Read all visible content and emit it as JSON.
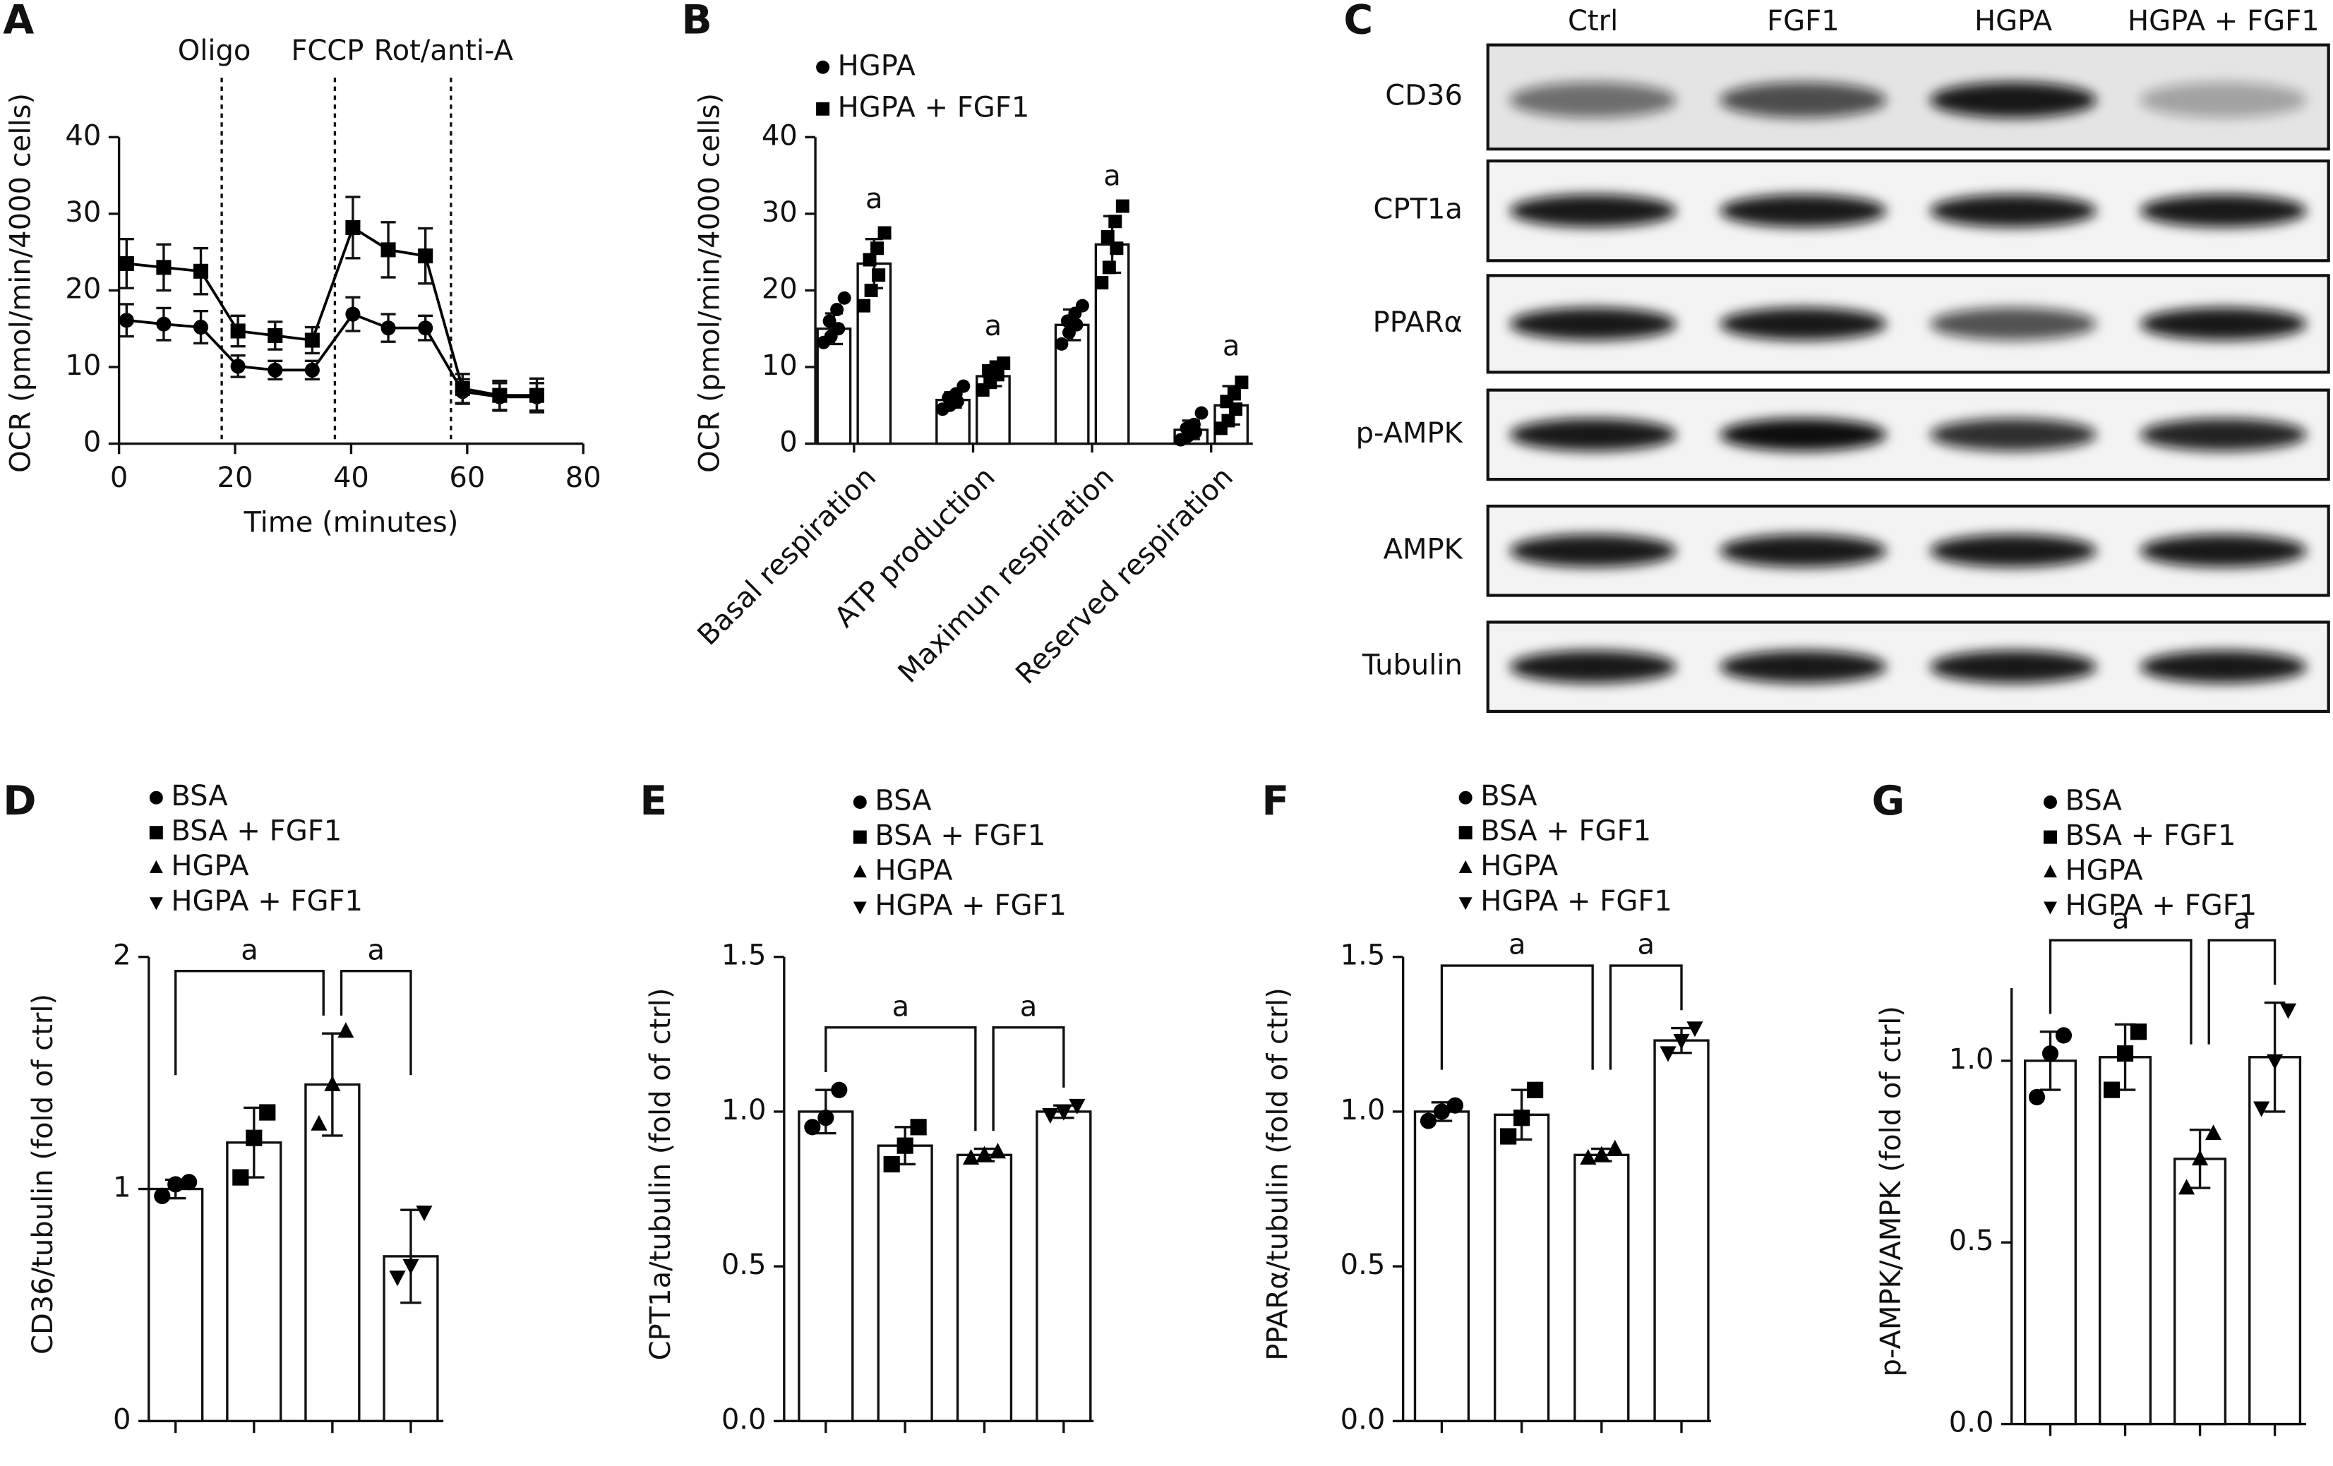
{
  "chart_data": [
    {
      "panel": "A",
      "type": "line",
      "ylabel": "OCR (pmol/min/4000 cells)",
      "xlabel": "Time (minutes)",
      "x": [
        1.3,
        7.7,
        14.1,
        20.5,
        26.9,
        33.3,
        40.3,
        46.4,
        52.8,
        59.2,
        65.6,
        72.0
      ],
      "xlim": [
        0,
        80
      ],
      "xticks": [
        0,
        20,
        40,
        60,
        80
      ],
      "ylim": [
        0,
        40
      ],
      "yticks": [
        0,
        10,
        20,
        30,
        40
      ],
      "series": [
        {
          "marker": "circle",
          "color": "#000000",
          "values": [
            16.1,
            15.6,
            15.2,
            10.1,
            9.6,
            9.6,
            16.9,
            15.1,
            15.1,
            6.8,
            6.1,
            6.1
          ],
          "errors": [
            2.1,
            2.1,
            2.1,
            1.4,
            1.2,
            1.2,
            2.2,
            1.8,
            1.6,
            1.6,
            1.8,
            1.8
          ]
        },
        {
          "marker": "square",
          "color": "#000000",
          "values": [
            23.5,
            23.0,
            22.5,
            14.7,
            14.1,
            13.5,
            28.2,
            25.3,
            24.5,
            7.2,
            6.3,
            6.3
          ],
          "errors": [
            3.2,
            3.0,
            3.0,
            2.0,
            1.8,
            1.7,
            4.0,
            3.6,
            3.6,
            1.9,
            1.9,
            2.2
          ]
        }
      ],
      "annotations": [
        {
          "x": 17.7,
          "label": "Oligo"
        },
        {
          "x": 37.2,
          "label": "FCCP"
        },
        {
          "x": 57.2,
          "label": "Rot/anti-A"
        }
      ]
    },
    {
      "panel": "B",
      "type": "grouped-bar",
      "ylabel": "OCR (pmol/min/4000 cells)",
      "categories": [
        "Basal respiration",
        "ATP production",
        "Maximun respiration",
        "Reserved respiration"
      ],
      "ylim": [
        0,
        40
      ],
      "yticks": [
        0,
        10,
        20,
        30,
        40
      ],
      "series": [
        {
          "name": "HGPA",
          "marker": "circle",
          "color": "#000000",
          "values": [
            15.0,
            5.7,
            15.5,
            1.8
          ],
          "errors": [
            2.0,
            1.0,
            2.0,
            1.2
          ],
          "points": [
            [
              13.2,
              14.0,
              15.0,
              16.0,
              17.5,
              19.0
            ],
            [
              4.5,
              5.0,
              5.5,
              6.0,
              6.5,
              7.5
            ],
            [
              13.0,
              14.5,
              15.5,
              16.0,
              17.0,
              18.0
            ],
            [
              0.5,
              1.0,
              1.5,
              2.0,
              2.5,
              4.0
            ]
          ]
        },
        {
          "name": "HGPA + FGF1",
          "marker": "square",
          "color": "#000000",
          "values": [
            23.5,
            8.8,
            26.0,
            5.0
          ],
          "errors": [
            3.2,
            1.3,
            3.7,
            2.5
          ],
          "points": [
            [
              18.0,
              20.0,
              22.0,
              24.0,
              25.5,
              27.5
            ],
            [
              7.0,
              8.0,
              9.0,
              9.5,
              10.0,
              10.5
            ],
            [
              21.0,
              23.0,
              25.5,
              27.0,
              29.0,
              31.0
            ],
            [
              2.0,
              3.0,
              4.5,
              5.5,
              6.5,
              8.0
            ]
          ],
          "sig_labels": [
            "a",
            "a",
            "a",
            "a"
          ]
        }
      ]
    },
    {
      "panel": "C",
      "type": "blot",
      "lanes": [
        "Ctrl",
        "FGF1",
        "HGPA",
        "HGPA + FGF1"
      ],
      "proteins": [
        "CD36",
        "CPT1a",
        "PPARα",
        "p-AMPK",
        "AMPK",
        "Tubulin"
      ]
    },
    {
      "panel": "D",
      "type": "bar",
      "ylabel": "CD36/tubulin (fold of ctrl)",
      "categories": [
        "BSA",
        "BSA + FGF1",
        "HGPA",
        "HGPA + FGF1"
      ],
      "markers": [
        "circle",
        "square",
        "triangle",
        "triangle-down"
      ],
      "color": "#000000",
      "values": [
        1.0,
        1.2,
        1.45,
        0.71
      ],
      "errors": [
        0.04,
        0.15,
        0.22,
        0.2
      ],
      "points": [
        [
          0.97,
          1.02,
          1.03
        ],
        [
          1.05,
          1.22,
          1.33
        ],
        [
          1.28,
          1.45,
          1.68
        ],
        [
          0.62,
          0.67,
          0.9
        ]
      ],
      "ylim": [
        0,
        2
      ],
      "yticks": [
        0,
        1,
        2
      ],
      "comparisons": [
        {
          "pair": [
            0,
            2
          ],
          "label": "a"
        },
        {
          "pair": [
            2,
            3
          ],
          "label": "a"
        }
      ]
    },
    {
      "panel": "E",
      "type": "bar",
      "ylabel": "CPT1a/tubulin (fold of ctrl)",
      "categories": [
        "BSA",
        "BSA + FGF1",
        "HGPA",
        "HGPA + FGF1"
      ],
      "markers": [
        "circle",
        "square",
        "triangle",
        "triangle-down"
      ],
      "color": "#000000",
      "values": [
        1.0,
        0.89,
        0.86,
        1.0
      ],
      "errors": [
        0.07,
        0.06,
        0.02,
        0.02
      ],
      "points": [
        [
          0.95,
          0.98,
          1.07
        ],
        [
          0.83,
          0.89,
          0.95
        ],
        [
          0.85,
          0.86,
          0.87
        ],
        [
          0.99,
          1.0,
          1.02
        ]
      ],
      "ylim": [
        0,
        1.5
      ],
      "yticks": [
        {
          "value": 0,
          "label": "0.0"
        },
        0.5,
        {
          "value": 1,
          "label": "1.0"
        },
        1.5
      ],
      "comparisons": [
        {
          "pair": [
            0,
            2
          ],
          "label": "a"
        },
        {
          "pair": [
            2,
            3
          ],
          "label": "a"
        }
      ]
    },
    {
      "panel": "F",
      "type": "bar",
      "ylabel": "PPARα/tubulin (fold of ctrl)",
      "categories": [
        "BSA",
        "BSA + FGF1",
        "HGPA",
        "HGPA + FGF1"
      ],
      "markers": [
        "circle",
        "square",
        "triangle",
        "triangle-down"
      ],
      "color": "#000000",
      "values": [
        1.0,
        0.99,
        0.86,
        1.23
      ],
      "errors": [
        0.03,
        0.08,
        0.02,
        0.04
      ],
      "points": [
        [
          0.97,
          1.0,
          1.02
        ],
        [
          0.92,
          0.98,
          1.07
        ],
        [
          0.85,
          0.86,
          0.88
        ],
        [
          1.19,
          1.23,
          1.27
        ]
      ],
      "ylim": [
        0,
        1.5
      ],
      "yticks": [
        {
          "value": 0,
          "label": "0.0"
        },
        0.5,
        {
          "value": 1,
          "label": "1.0"
        },
        1.5
      ],
      "comparisons": [
        {
          "pair": [
            0,
            2
          ],
          "label": "a"
        },
        {
          "pair": [
            2,
            3
          ],
          "label": "a"
        }
      ]
    },
    {
      "panel": "G",
      "type": "bar",
      "ylabel": "p-AMPK/AMPK (fold of ctrl)",
      "categories": [
        "BSA",
        "BSA + FGF1",
        "HGPA",
        "HGPA + FGF1"
      ],
      "markers": [
        "circle",
        "square",
        "triangle",
        "triangle-down"
      ],
      "color": "#000000",
      "values": [
        1.0,
        1.01,
        0.73,
        1.01
      ],
      "errors": [
        0.08,
        0.09,
        0.08,
        0.15
      ],
      "points": [
        [
          0.9,
          1.02,
          1.07
        ],
        [
          0.92,
          1.02,
          1.08
        ],
        [
          0.65,
          0.73,
          0.8
        ],
        [
          0.87,
          1.0,
          1.14
        ]
      ],
      "ylim": [
        0,
        1.2
      ],
      "yticks": [
        {
          "value": 0,
          "label": "0.0"
        },
        0.5,
        {
          "value": 1,
          "label": "1.0"
        }
      ],
      "comparisons": [
        {
          "pair": [
            0,
            2
          ],
          "label": "a"
        },
        {
          "pair": [
            2,
            3
          ],
          "label": "a"
        }
      ]
    }
  ]
}
